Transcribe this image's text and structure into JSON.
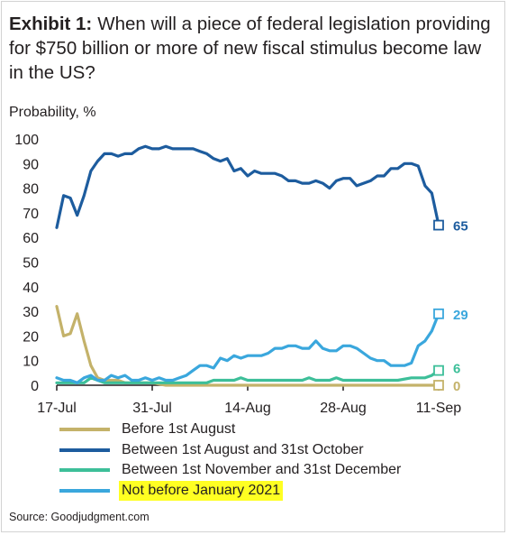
{
  "title": {
    "prefix": "Exhibit 1:",
    "text": "When will a piece of federal legislation providing for $750 billion or more of new fiscal stimulus become law in the US?"
  },
  "source": "Source: Goodjudgment.com",
  "chart_data": {
    "type": "line",
    "ylabel": "Probability, %",
    "ylim": [
      0,
      100
    ],
    "yticks": [
      0,
      10,
      20,
      30,
      40,
      50,
      60,
      70,
      80,
      90,
      100
    ],
    "xlim": [
      0,
      56
    ],
    "x_ticks": [
      {
        "x": 0,
        "label": "17-Jul"
      },
      {
        "x": 14,
        "label": "31-Jul"
      },
      {
        "x": 28,
        "label": "14-Aug"
      },
      {
        "x": 42,
        "label": "28-Aug"
      },
      {
        "x": 56,
        "label": "11-Sep"
      }
    ],
    "grid": false,
    "legend_position": "bottom",
    "series": [
      {
        "name": "Before 1st August",
        "color": "#c4b26a",
        "end_label": "0",
        "points": [
          [
            0,
            32
          ],
          [
            1,
            20
          ],
          [
            2,
            21
          ],
          [
            3,
            29
          ],
          [
            4,
            18
          ],
          [
            5,
            8
          ],
          [
            6,
            3
          ],
          [
            7,
            2
          ],
          [
            8,
            2
          ],
          [
            9,
            2
          ],
          [
            10,
            1
          ],
          [
            11,
            1
          ],
          [
            12,
            1
          ],
          [
            13,
            1
          ],
          [
            14,
            1
          ],
          [
            16,
            0
          ],
          [
            20,
            0
          ],
          [
            30,
            0
          ],
          [
            40,
            0
          ],
          [
            50,
            0
          ],
          [
            56,
            0
          ]
        ]
      },
      {
        "name": "Between 1st August and 31st October",
        "color": "#1d5c9e",
        "end_label": "65",
        "points": [
          [
            0,
            64
          ],
          [
            1,
            77
          ],
          [
            2,
            76
          ],
          [
            3,
            69
          ],
          [
            4,
            77
          ],
          [
            5,
            87
          ],
          [
            6,
            91
          ],
          [
            7,
            94
          ],
          [
            8,
            94
          ],
          [
            9,
            93
          ],
          [
            10,
            94
          ],
          [
            11,
            94
          ],
          [
            12,
            96
          ],
          [
            13,
            97
          ],
          [
            14,
            96
          ],
          [
            15,
            96
          ],
          [
            16,
            97
          ],
          [
            17,
            96
          ],
          [
            18,
            96
          ],
          [
            19,
            96
          ],
          [
            20,
            96
          ],
          [
            21,
            95
          ],
          [
            22,
            94
          ],
          [
            23,
            92
          ],
          [
            24,
            91
          ],
          [
            25,
            92
          ],
          [
            26,
            87
          ],
          [
            27,
            88
          ],
          [
            28,
            85
          ],
          [
            29,
            87
          ],
          [
            30,
            86
          ],
          [
            31,
            86
          ],
          [
            32,
            86
          ],
          [
            33,
            85
          ],
          [
            34,
            83
          ],
          [
            35,
            83
          ],
          [
            36,
            82
          ],
          [
            37,
            82
          ],
          [
            38,
            83
          ],
          [
            39,
            82
          ],
          [
            40,
            80
          ],
          [
            41,
            83
          ],
          [
            42,
            84
          ],
          [
            43,
            84
          ],
          [
            44,
            81
          ],
          [
            45,
            82
          ],
          [
            46,
            83
          ],
          [
            47,
            85
          ],
          [
            48,
            85
          ],
          [
            49,
            88
          ],
          [
            50,
            88
          ],
          [
            51,
            90
          ],
          [
            52,
            90
          ],
          [
            53,
            89
          ],
          [
            54,
            81
          ],
          [
            55,
            78
          ],
          [
            56,
            65
          ]
        ]
      },
      {
        "name": "Between 1st November and 31st December",
        "color": "#3dbf99",
        "end_label": "6",
        "points": [
          [
            0,
            1
          ],
          [
            2,
            1
          ],
          [
            4,
            1
          ],
          [
            5,
            3
          ],
          [
            6,
            2
          ],
          [
            7,
            1
          ],
          [
            10,
            1
          ],
          [
            14,
            1
          ],
          [
            18,
            1
          ],
          [
            22,
            1
          ],
          [
            23,
            2
          ],
          [
            24,
            2
          ],
          [
            26,
            2
          ],
          [
            27,
            3
          ],
          [
            28,
            2
          ],
          [
            30,
            2
          ],
          [
            34,
            2
          ],
          [
            36,
            2
          ],
          [
            37,
            3
          ],
          [
            38,
            2
          ],
          [
            40,
            2
          ],
          [
            41,
            3
          ],
          [
            42,
            2
          ],
          [
            44,
            2
          ],
          [
            48,
            2
          ],
          [
            50,
            2
          ],
          [
            52,
            3
          ],
          [
            54,
            3
          ],
          [
            55,
            4
          ],
          [
            56,
            6
          ]
        ]
      },
      {
        "name": "Not before January 2021",
        "color": "#3aa7dd",
        "end_label": "29",
        "points": [
          [
            0,
            3
          ],
          [
            1,
            2
          ],
          [
            2,
            2
          ],
          [
            3,
            1
          ],
          [
            4,
            3
          ],
          [
            5,
            4
          ],
          [
            6,
            2
          ],
          [
            7,
            2
          ],
          [
            8,
            4
          ],
          [
            9,
            3
          ],
          [
            10,
            4
          ],
          [
            11,
            2
          ],
          [
            12,
            2
          ],
          [
            13,
            3
          ],
          [
            14,
            2
          ],
          [
            15,
            3
          ],
          [
            16,
            2
          ],
          [
            17,
            2
          ],
          [
            18,
            3
          ],
          [
            19,
            4
          ],
          [
            20,
            6
          ],
          [
            21,
            8
          ],
          [
            22,
            8
          ],
          [
            23,
            7
          ],
          [
            24,
            11
          ],
          [
            25,
            10
          ],
          [
            26,
            12
          ],
          [
            27,
            11
          ],
          [
            28,
            12
          ],
          [
            29,
            12
          ],
          [
            30,
            12
          ],
          [
            31,
            13
          ],
          [
            32,
            15
          ],
          [
            33,
            15
          ],
          [
            34,
            16
          ],
          [
            35,
            16
          ],
          [
            36,
            15
          ],
          [
            37,
            15
          ],
          [
            38,
            18
          ],
          [
            39,
            15
          ],
          [
            40,
            14
          ],
          [
            41,
            14
          ],
          [
            42,
            16
          ],
          [
            43,
            16
          ],
          [
            44,
            15
          ],
          [
            45,
            13
          ],
          [
            46,
            11
          ],
          [
            47,
            10
          ],
          [
            48,
            10
          ],
          [
            49,
            8
          ],
          [
            50,
            8
          ],
          [
            51,
            8
          ],
          [
            52,
            9
          ],
          [
            53,
            16
          ],
          [
            54,
            18
          ],
          [
            55,
            22
          ],
          [
            56,
            29
          ]
        ]
      }
    ]
  }
}
